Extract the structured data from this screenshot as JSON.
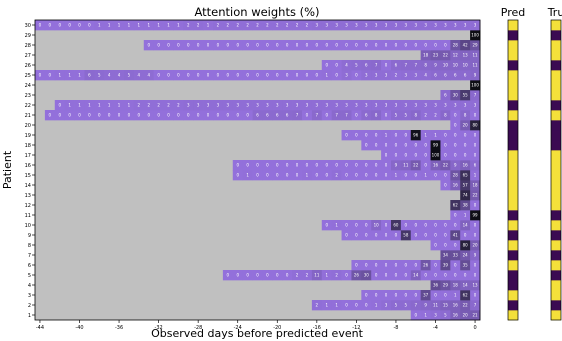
{
  "chart_data": {
    "type": "heatmap",
    "title": "Attention weights (%)",
    "xlabel": "Observed days before predicted event",
    "ylabel": "Patient",
    "xlim": [
      -44.5,
      0.5
    ],
    "x_ticks": [
      -44,
      -40,
      -36,
      -32,
      -28,
      -24,
      -20,
      -16,
      -12,
      -8,
      -4,
      0
    ],
    "y_ticks": [
      1,
      2,
      3,
      4,
      5,
      6,
      7,
      8,
      9,
      10,
      11,
      12,
      13,
      14,
      15,
      16,
      17,
      18,
      19,
      20,
      21,
      22,
      23,
      24,
      25,
      26,
      27,
      28,
      29,
      30
    ],
    "colors": {
      "background": "#c0c0c0",
      "low": "#9370db",
      "high": "#0d0d14",
      "label_light": "#ffffff",
      "label_dark": "#000000",
      "pred_yes": "#f4e03a",
      "pred_no": "#3b0a52"
    },
    "rows": [
      {
        "patient": 1,
        "values": [
          0,
          1,
          3,
          5,
          16,
          20,
          21
        ]
      },
      {
        "patient": 2,
        "values": [
          2,
          1,
          1,
          0,
          0,
          0,
          1,
          3,
          5,
          5,
          7,
          9,
          11,
          15,
          16,
          22,
          7
        ]
      },
      {
        "patient": 3,
        "values": [
          0,
          0,
          0,
          0,
          0,
          0,
          37,
          0,
          0,
          1,
          62,
          0
        ]
      },
      {
        "patient": 4,
        "values": [
          36,
          29,
          18,
          14,
          13
        ]
      },
      {
        "patient": 5,
        "values": [
          0,
          0,
          0,
          0,
          0,
          0,
          0,
          2,
          2,
          11,
          1,
          2,
          0,
          26,
          30,
          0,
          0,
          0,
          0,
          14,
          0,
          0,
          0,
          0,
          0,
          0
        ]
      },
      {
        "patient": 6,
        "values": [
          0,
          0,
          0,
          0,
          0,
          0,
          0,
          26,
          0,
          39,
          0,
          35,
          0
        ]
      },
      {
        "patient": 7,
        "values": [
          34,
          33,
          24,
          9
        ]
      },
      {
        "patient": 8,
        "values": [
          0,
          0,
          0,
          80,
          20
        ]
      },
      {
        "patient": 9,
        "values": [
          0,
          0,
          0,
          0,
          0,
          0,
          58,
          0,
          0,
          0,
          0,
          41,
          0,
          0
        ]
      },
      {
        "patient": 10,
        "values": [
          0,
          1,
          0,
          0,
          0,
          10,
          0,
          60,
          0,
          0,
          0,
          0,
          0,
          0,
          14,
          0
        ]
      },
      {
        "patient": 11,
        "values": [
          0,
          1,
          99
        ]
      },
      {
        "patient": 12,
        "values": [
          62,
          38,
          0
        ]
      },
      {
        "patient": 13,
        "values": [
          74,
          22
        ]
      },
      {
        "patient": 14,
        "values": [
          0,
          16,
          57,
          18
        ]
      },
      {
        "patient": 15,
        "values": [
          0,
          1,
          0,
          0,
          0,
          0,
          0,
          1,
          0,
          0,
          2,
          0,
          0,
          0,
          0,
          0,
          1,
          0,
          0,
          1,
          0,
          0,
          28,
          65,
          1
        ]
      },
      {
        "patient": 16,
        "values": [
          0,
          0,
          0,
          0,
          0,
          0,
          0,
          0,
          0,
          0,
          0,
          0,
          0,
          0,
          0,
          0,
          9,
          11,
          22,
          0,
          16,
          22,
          9,
          16,
          6
        ]
      },
      {
        "patient": 17,
        "values": [
          0,
          0,
          0,
          0,
          0,
          100,
          0,
          0,
          0,
          0
        ]
      },
      {
        "patient": 18,
        "values": [
          0,
          0,
          0,
          0,
          0,
          0,
          0,
          99,
          0,
          0,
          0,
          0
        ]
      },
      {
        "patient": 19,
        "values": [
          0,
          0,
          0,
          0,
          1,
          0,
          0,
          96,
          1,
          1,
          0,
          0,
          0,
          0
        ]
      },
      {
        "patient": 20,
        "values": [
          0,
          20,
          80
        ]
      },
      {
        "patient": 21,
        "values": [
          0,
          0,
          0,
          0,
          0,
          0,
          0,
          0,
          0,
          0,
          0,
          0,
          0,
          0,
          0,
          0,
          0,
          0,
          0,
          0,
          0,
          6,
          6,
          6,
          6,
          7,
          0,
          7,
          0,
          7,
          7,
          0,
          6,
          8,
          0,
          5,
          5,
          8,
          2,
          2,
          8,
          0,
          8,
          0
        ]
      },
      {
        "patient": 22,
        "values": [
          0,
          1,
          1,
          1,
          1,
          1,
          1,
          1,
          2,
          2,
          2,
          2,
          2,
          3,
          3,
          3,
          3,
          3,
          3,
          3,
          3,
          3,
          3,
          3,
          3,
          3,
          3,
          3,
          3,
          3,
          3,
          3,
          3,
          3,
          3,
          3,
          3,
          3,
          3,
          3,
          3,
          3,
          3
        ]
      },
      {
        "patient": 23,
        "values": [
          6,
          30,
          55,
          7
        ]
      },
      {
        "patient": 24,
        "values": [
          100
        ]
      },
      {
        "patient": 25,
        "values": [
          0,
          0,
          1,
          1,
          1,
          6,
          5,
          4,
          4,
          5,
          4,
          4,
          0,
          0,
          0,
          0,
          0,
          0,
          0,
          0,
          0,
          0,
          0,
          0,
          0,
          0,
          0,
          0,
          0,
          1,
          0,
          3,
          0,
          3,
          3,
          3,
          2,
          3,
          3,
          4,
          6,
          6,
          6,
          6,
          9
        ]
      },
      {
        "patient": 26,
        "values": [
          0,
          0,
          4,
          5,
          6,
          7,
          0,
          6,
          7,
          7,
          8,
          9,
          10,
          10,
          10,
          11
        ]
      },
      {
        "patient": 27,
        "values": [
          18,
          23,
          22,
          12,
          13,
          11
        ]
      },
      {
        "patient": 28,
        "values": [
          0,
          0,
          0,
          0,
          0,
          0,
          0,
          0,
          0,
          0,
          0,
          0,
          0,
          0,
          0,
          0,
          0,
          0,
          0,
          0,
          0,
          0,
          0,
          0,
          0,
          0,
          0,
          0,
          0,
          0,
          0,
          28,
          42,
          29
        ]
      },
      {
        "patient": 29,
        "values": [
          100
        ]
      },
      {
        "patient": 30,
        "values": [
          0,
          0,
          0,
          0,
          0,
          0,
          1,
          1,
          1,
          1,
          1,
          1,
          1,
          1,
          1,
          2,
          2,
          1,
          2,
          2,
          2,
          2,
          2,
          2,
          2,
          2,
          2,
          2,
          3,
          3,
          3,
          3,
          3,
          3,
          3,
          3,
          3,
          3,
          3,
          3,
          3,
          3,
          3,
          3,
          3
        ]
      }
    ],
    "side_panels": [
      {
        "label": "Pred",
        "values": [
          1,
          0,
          1,
          0,
          0,
          1,
          0,
          1,
          0,
          1,
          0,
          1,
          1,
          1,
          1,
          1,
          1,
          0,
          0,
          0,
          1,
          0,
          1,
          1,
          1,
          0,
          1,
          1,
          0,
          1
        ]
      },
      {
        "label": "Tru",
        "values": [
          1,
          0,
          1,
          1,
          0,
          1,
          0,
          1,
          0,
          1,
          0,
          1,
          1,
          1,
          1,
          1,
          1,
          0,
          0,
          0,
          1,
          0,
          1,
          1,
          1,
          0,
          1,
          1,
          0,
          1
        ]
      }
    ]
  }
}
